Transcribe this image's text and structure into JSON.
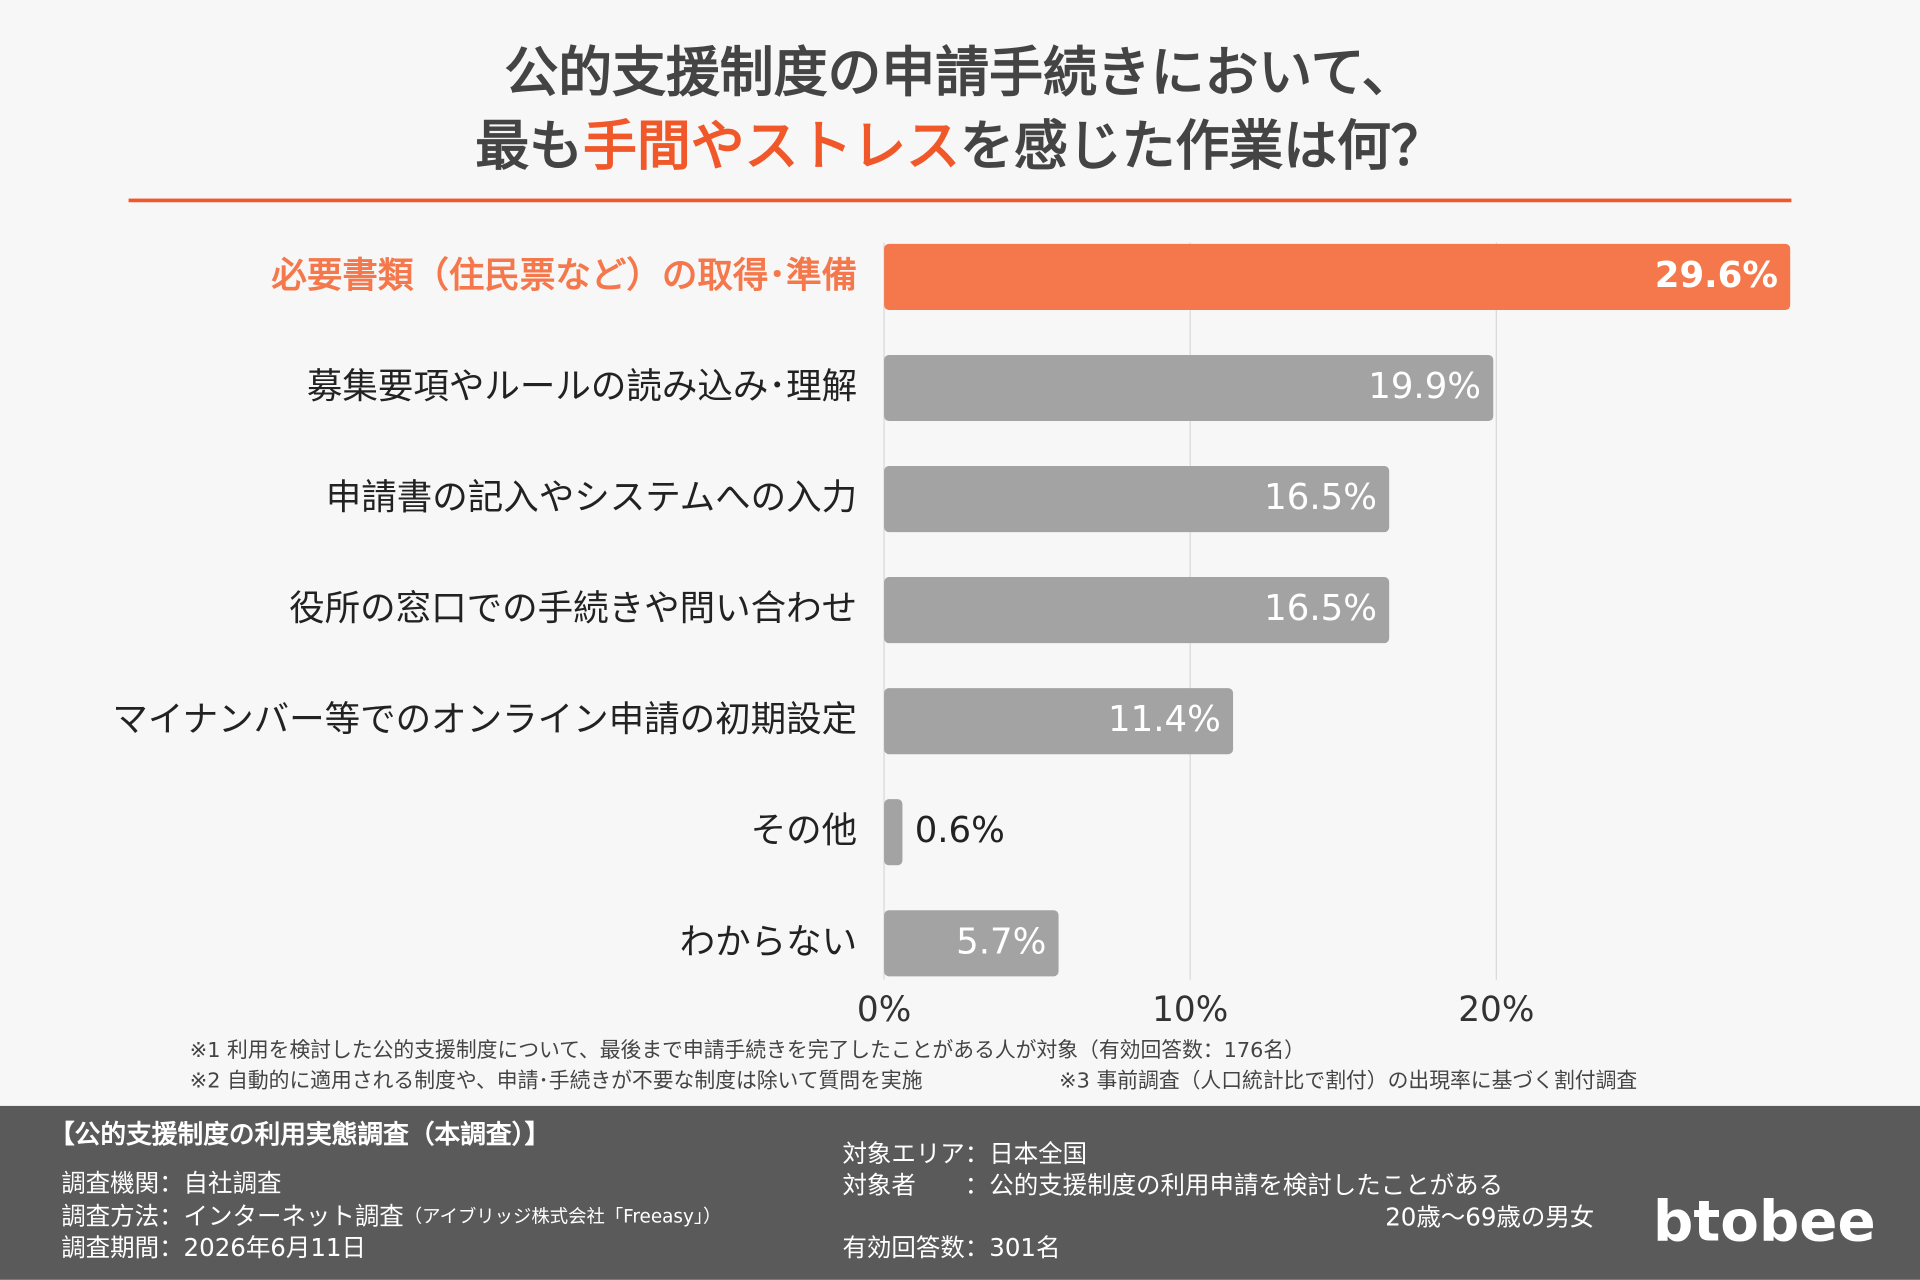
{
  "chart_data": {
    "type": "hbar",
    "title": {
      "line1": "公的支援制度の申請手続きにおいて、",
      "line2": [
        "最も",
        "手間やストレス",
        "を感じた作業は何？"
      ]
    },
    "categories": [
      "必要書類（住民票など）の取得･準備",
      "募集要項やルールの読み込み･理解",
      "申請書の記入やシステムへの入力",
      "役所の窓口での手続きや問い合わせ",
      "マイナンバー等でのオンライン申請の初期設定",
      "その他",
      "わからない"
    ],
    "values": [
      29.6,
      19.9,
      16.5,
      16.5,
      11.4,
      0.6,
      5.7
    ],
    "value_labels": [
      "29.6%",
      "19.9%",
      "16.5%",
      "16.5%",
      "11.4%",
      "0.6%",
      "5.7%"
    ],
    "colors": [
      "#f4784b",
      "#a3a3a3",
      "#a3a3a3",
      "#a3a3a3",
      "#a3a3a3",
      "#a3a3a3",
      "#a3a3a3"
    ],
    "highlight": 0,
    "xlim": [
      0,
      30
    ],
    "xticks": [
      {
        "value": 0,
        "label": "0%"
      },
      {
        "value": 10,
        "label": "10%"
      },
      {
        "value": 20,
        "label": "20%"
      }
    ],
    "grid": true,
    "notes": [
      "※1 利用を検討した公的支援制度について、最後まで申請手続きを完了したことがある人が対象（有効回答数：176名）",
      "※2 自動的に適用される制度や、申請･手続きが不要な制度は除いて質問を実施",
      "※3 事前調査（人口統計比で割付）の出現率に基づく割付調査"
    ]
  },
  "footer": {
    "heading": "【公的支援制度の利用実態調査（本調査）】",
    "left": [
      "調査機関：自社調査",
      "調査方法：インターネット調査",
      "（アイブリッジ株式会社「Freeasy」）",
      "調査期間：2026年6月11日"
    ],
    "right": [
      "対象エリア：日本全国",
      "対象者　　：公的支援制度の利用申請を検討したことがある",
      "20歳〜69歳の男女",
      "有効回答数：301名"
    ],
    "logo": "btobee"
  }
}
